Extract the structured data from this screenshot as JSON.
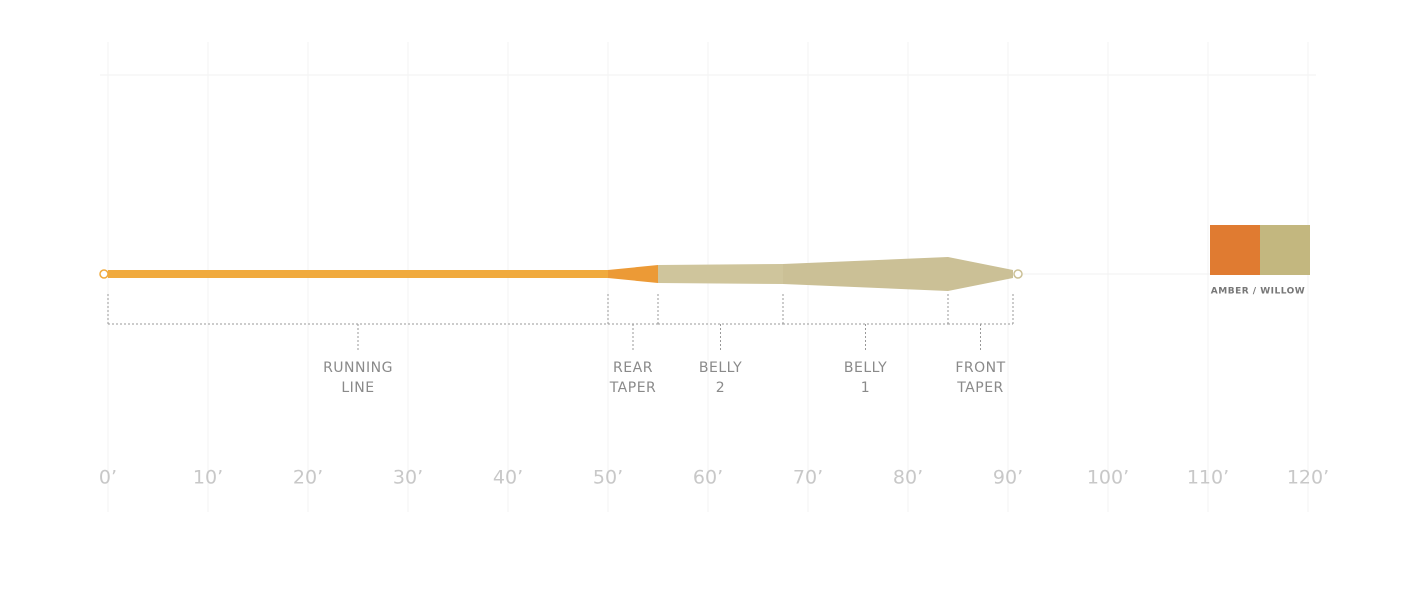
{
  "diagram": {
    "xlim": [
      0,
      120
    ],
    "xticks": [
      {
        "value": 0,
        "label": "0’"
      },
      {
        "value": 10,
        "label": "10’"
      },
      {
        "value": 20,
        "label": "20’"
      },
      {
        "value": 30,
        "label": "30’"
      },
      {
        "value": 40,
        "label": "40’"
      },
      {
        "value": 50,
        "label": "50’"
      },
      {
        "value": 60,
        "label": "60’"
      },
      {
        "value": 70,
        "label": "70’"
      },
      {
        "value": 80,
        "label": "80’"
      },
      {
        "value": 90,
        "label": "90’"
      },
      {
        "value": 100,
        "label": "100’"
      },
      {
        "value": 110,
        "label": "110’"
      },
      {
        "value": 120,
        "label": "120’"
      }
    ],
    "sections": [
      {
        "lines": [
          "RUNNING",
          "LINE"
        ],
        "start": 0,
        "end": 50,
        "color": "#f0aa3e"
      },
      {
        "lines": [
          "REAR",
          "TAPER"
        ],
        "start": 50,
        "end": 55,
        "color": "#ec9a36"
      },
      {
        "lines": [
          "BELLY",
          "2"
        ],
        "start": 55,
        "end": 67.5,
        "color": "#cfc59c"
      },
      {
        "lines": [
          "BELLY",
          "1"
        ],
        "start": 67.5,
        "end": 84,
        "color": "#cbc096"
      },
      {
        "lines": [
          "FRONT",
          "TAPER"
        ],
        "start": 84,
        "end": 90.5,
        "color": "#cbc096"
      }
    ],
    "legend": {
      "label": "AMBER / WILLOW",
      "colors": [
        "#e07b31",
        "#c3b77f"
      ]
    }
  }
}
